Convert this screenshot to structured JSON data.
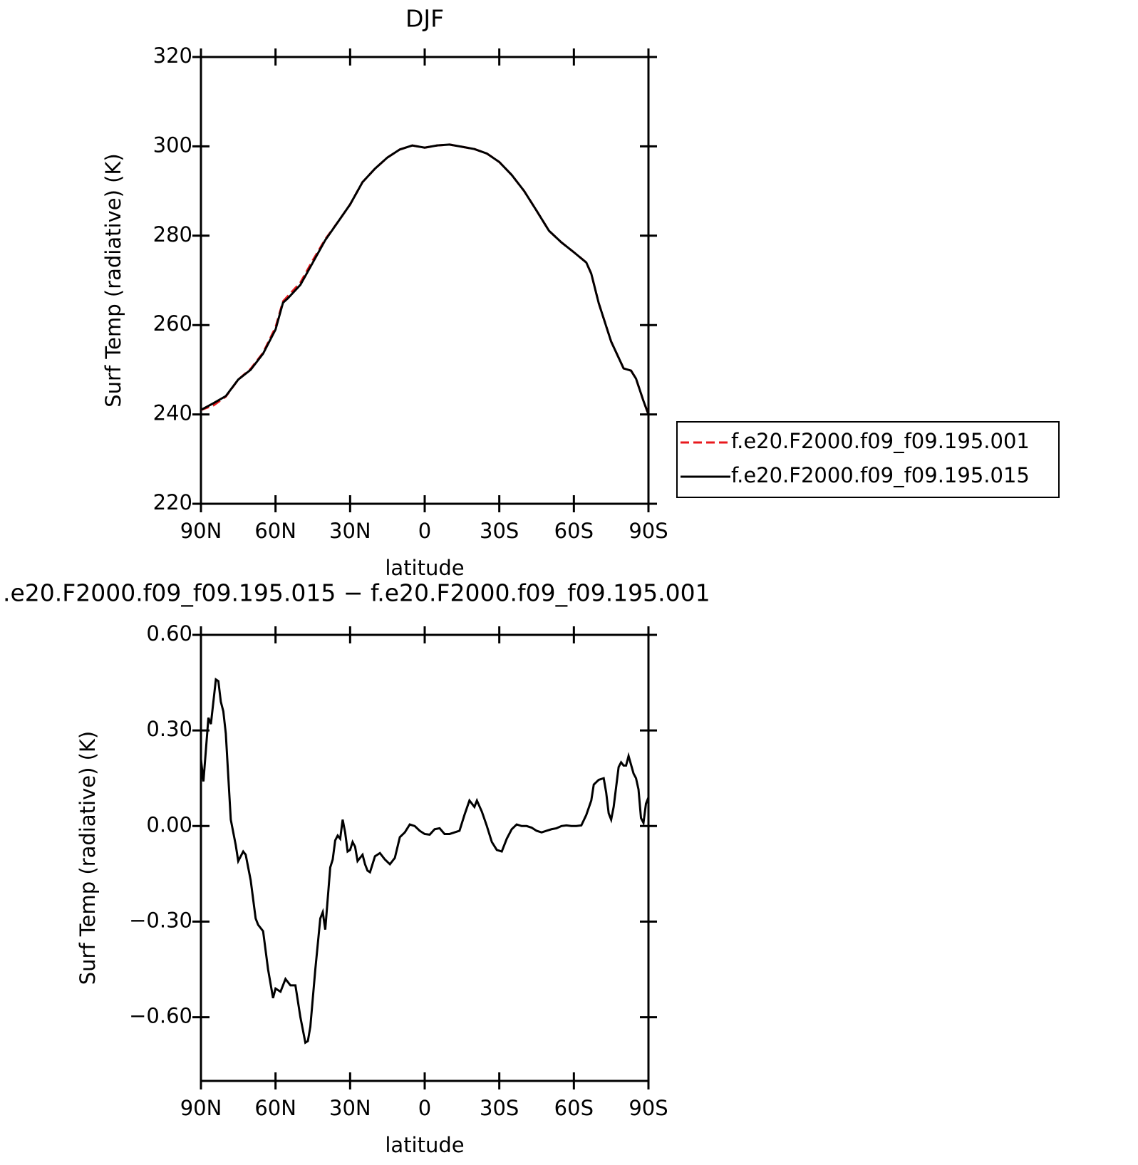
{
  "chart_data": [
    {
      "type": "line",
      "title": "DJF",
      "ylabel": "Surf Temp (radiative) (K)",
      "xlabel": "latitude",
      "x": [
        90,
        85,
        80,
        75,
        70,
        65,
        60,
        57,
        55,
        50,
        45,
        40,
        35,
        30,
        25,
        20,
        15,
        10,
        5,
        0,
        -5,
        -10,
        -15,
        -20,
        -25,
        -30,
        -35,
        -40,
        -45,
        -50,
        -55,
        -60,
        -65,
        -67,
        -70,
        -75,
        -80,
        -83,
        -85,
        -88,
        -90
      ],
      "series": [
        {
          "name": "f.e20.F2000.f09_f09.195.001",
          "color": "#e8191d",
          "dashed": true,
          "values": [
            241,
            242,
            244,
            247.8,
            250.2,
            253.8,
            259.5,
            265.3,
            266.5,
            269.5,
            274.5,
            279.2,
            283,
            287,
            292,
            295,
            297.5,
            299.3,
            300.2,
            299.7,
            300.2,
            300.4,
            299.9,
            299.4,
            298.4,
            296.5,
            293.6,
            290,
            285.6,
            281.1,
            278.5,
            276.3,
            274,
            271.5,
            264.9,
            256.3,
            250.3,
            249.8,
            248,
            243,
            240
          ]
        },
        {
          "name": "f.e20.F2000.f09_f09.195.015",
          "color": "#000000",
          "dashed": false,
          "values": [
            241,
            242.5,
            244.1,
            247.8,
            250,
            253.6,
            259,
            265,
            266,
            269,
            274,
            279,
            283,
            287,
            292,
            295,
            297.5,
            299.3,
            300.2,
            299.7,
            300.2,
            300.4,
            299.9,
            299.4,
            298.4,
            296.5,
            293.6,
            290,
            285.6,
            281.1,
            278.5,
            276.3,
            274,
            271.5,
            264.9,
            256.3,
            250.3,
            249.8,
            248,
            243,
            240
          ]
        }
      ],
      "xlim": [
        90,
        -90
      ],
      "xticks": [
        {
          "value": 90,
          "label": "90N"
        },
        {
          "value": 60,
          "label": "60N"
        },
        {
          "value": 30,
          "label": "30N"
        },
        0,
        {
          "value": -30,
          "label": "30S"
        },
        {
          "value": -60,
          "label": "60S"
        },
        {
          "value": -90,
          "label": "90S"
        }
      ],
      "ylim": [
        220,
        320
      ],
      "yticks": [
        220,
        240,
        260,
        280,
        300,
        320
      ],
      "legend": "right"
    },
    {
      "type": "line",
      "title": ".e20.F2000.f09_f09.195.015 − f.e20.F2000.f09_f09.195.001",
      "ylabel": "Surf Temp (radiative) (K)",
      "xlabel": "latitude",
      "x": [
        90,
        89,
        87,
        86,
        84,
        83,
        82,
        81,
        80,
        78,
        76,
        75,
        73,
        72,
        70,
        68,
        67,
        65,
        63,
        61,
        60,
        58,
        57,
        56,
        54,
        52,
        50,
        48,
        47,
        46,
        44,
        42,
        41,
        40,
        38,
        37,
        36,
        35,
        34,
        33,
        32,
        31,
        30,
        29,
        28,
        27,
        26,
        25,
        24,
        23,
        22,
        20,
        18,
        16,
        14,
        12,
        10,
        8,
        6,
        4,
        2,
        0,
        -2,
        -4,
        -6,
        -8,
        -10,
        -12,
        -14,
        -16,
        -18,
        -20,
        -21,
        -23,
        -25,
        -27,
        -29,
        -31,
        -33,
        -35,
        -37,
        -39,
        -41,
        -43,
        -45,
        -47,
        -49,
        -51,
        -53,
        -55,
        -57,
        -59,
        -61,
        -63,
        -65,
        -67,
        -68,
        -70,
        -72,
        -73,
        -74,
        -75,
        -76,
        -78,
        -79,
        -80,
        -81,
        -82,
        -84,
        -85,
        -86,
        -87,
        -88,
        -89,
        -90
      ],
      "series": [
        {
          "name": "difference",
          "color": "#000000",
          "dashed": false,
          "values": [
            0.21,
            0.14,
            0.34,
            0.32,
            0.46,
            0.455,
            0.39,
            0.36,
            0.29,
            0.02,
            -0.06,
            -0.11,
            -0.08,
            -0.09,
            -0.17,
            -0.29,
            -0.31,
            -0.33,
            -0.45,
            -0.54,
            -0.51,
            -0.52,
            -0.5,
            -0.48,
            -0.5,
            -0.5,
            -0.6,
            -0.68,
            -0.675,
            -0.63,
            -0.45,
            -0.29,
            -0.27,
            -0.325,
            -0.13,
            -0.105,
            -0.045,
            -0.03,
            -0.04,
            0.02,
            -0.02,
            -0.08,
            -0.075,
            -0.05,
            -0.065,
            -0.11,
            -0.1,
            -0.09,
            -0.12,
            -0.14,
            -0.145,
            -0.095,
            -0.085,
            -0.105,
            -0.12,
            -0.1,
            -0.035,
            -0.02,
            0.005,
            0,
            -0.015,
            -0.025,
            -0.027,
            -0.01,
            -0.007,
            -0.025,
            -0.025,
            -0.02,
            -0.015,
            0.035,
            0.08,
            0.06,
            0.08,
            0.045,
            0,
            -0.05,
            -0.075,
            -0.08,
            -0.04,
            -0.01,
            0.005,
            0,
            0,
            -0.005,
            -0.015,
            -0.02,
            -0.015,
            -0.01,
            -0.007,
            0,
            0.002,
            0,
            0,
            0.002,
            0.035,
            0.08,
            0.13,
            0.145,
            0.15,
            0.105,
            0.04,
            0.02,
            0.06,
            0.185,
            0.2,
            0.19,
            0.19,
            0.22,
            0.165,
            0.15,
            0.115,
            0.025,
            0.01,
            0.07,
            0.09
          ]
        }
      ],
      "xlim": [
        90,
        -90
      ],
      "xticks": [
        {
          "value": 90,
          "label": "90N"
        },
        {
          "value": 60,
          "label": "60N"
        },
        {
          "value": 30,
          "label": "30N"
        },
        0,
        {
          "value": -30,
          "label": "30S"
        },
        {
          "value": -60,
          "label": "60S"
        },
        {
          "value": -90,
          "label": "90S"
        }
      ],
      "ylim": [
        -0.8,
        0.6
      ],
      "yticks": [
        {
          "value": -0.6,
          "label": "−0.60"
        },
        {
          "value": -0.3,
          "label": "−0.30"
        },
        {
          "value": 0,
          "label": "0.00"
        },
        {
          "value": 0.3,
          "label": "0.30"
        },
        {
          "value": 0.6,
          "label": "0.60"
        }
      ]
    }
  ]
}
